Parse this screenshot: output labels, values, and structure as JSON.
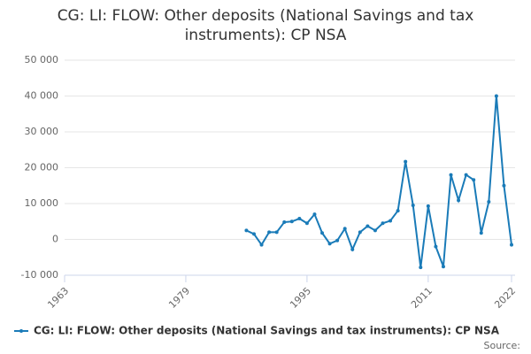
{
  "chart_data": {
    "type": "line",
    "title": [
      "CG: LI: FLOW: Other deposits (National Savings and tax",
      "instruments): CP NSA"
    ],
    "source": "Source:",
    "x": [
      1987,
      1988,
      1989,
      1990,
      1991,
      1992,
      1993,
      1994,
      1995,
      1996,
      1997,
      1998,
      1999,
      2000,
      2001,
      2002,
      2003,
      2004,
      2005,
      2006,
      2007,
      2008,
      2009,
      2010,
      2011,
      2012,
      2013,
      2014,
      2015,
      2016,
      2017,
      2018,
      2019,
      2020,
      2021,
      2022
    ],
    "series": [
      {
        "name": "CG: LI: FLOW: Other deposits (National Savings and tax instruments): CP NSA",
        "color": "#1a7bb8",
        "values": [
          2500,
          1500,
          -1500,
          2000,
          2000,
          4800,
          5000,
          5800,
          4500,
          7000,
          1800,
          -1200,
          -300,
          3000,
          -2800,
          2000,
          3700,
          2500,
          4500,
          5200,
          8000,
          21700,
          9500,
          -7800,
          9300,
          -2000,
          -7600,
          18000,
          10900,
          18000,
          16600,
          1800,
          10500,
          40000,
          15000,
          -1500
        ]
      }
    ],
    "xlim": [
      1963,
      2022
    ],
    "xticks": [
      1963,
      1979,
      1995,
      2011,
      2022
    ],
    "ylim": [
      -10000,
      50000
    ],
    "yticks": [
      {
        "value": -10000,
        "label": "-10 000"
      },
      0,
      {
        "value": 10000,
        "label": "10 000"
      },
      {
        "value": 20000,
        "label": "20 000"
      },
      {
        "value": 30000,
        "label": "30 000"
      },
      {
        "value": 40000,
        "label": "40 000"
      },
      {
        "value": 50000,
        "label": "50 000"
      }
    ],
    "grid": true
  }
}
